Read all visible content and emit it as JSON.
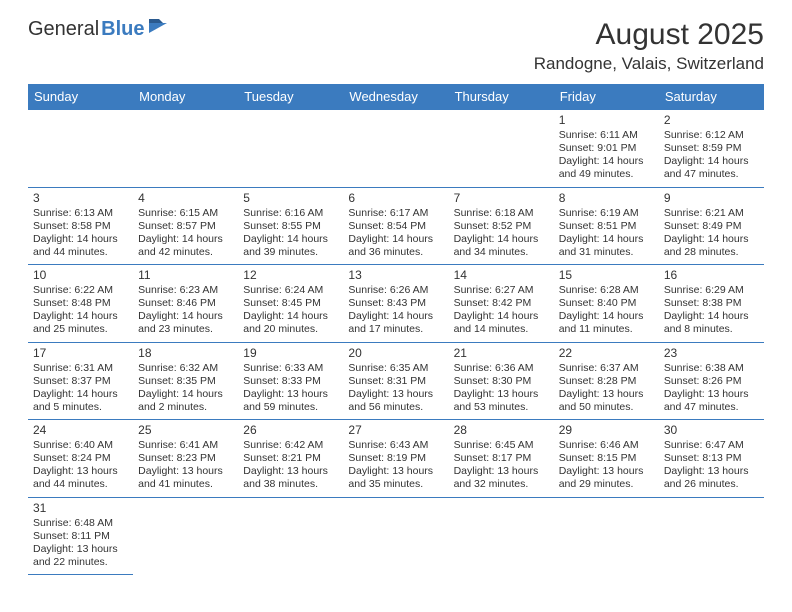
{
  "logo": {
    "text1": "General",
    "text2": "Blue"
  },
  "title": "August 2025",
  "location": "Randogne, Valais, Switzerland",
  "colors": {
    "accent": "#3b7bbf",
    "text": "#333333",
    "background": "#ffffff"
  },
  "weekdays": [
    "Sunday",
    "Monday",
    "Tuesday",
    "Wednesday",
    "Thursday",
    "Friday",
    "Saturday"
  ],
  "grid": [
    [
      null,
      null,
      null,
      null,
      null,
      {
        "n": "1",
        "sunrise": "Sunrise: 6:11 AM",
        "sunset": "Sunset: 9:01 PM",
        "d1": "Daylight: 14 hours",
        "d2": "and 49 minutes."
      },
      {
        "n": "2",
        "sunrise": "Sunrise: 6:12 AM",
        "sunset": "Sunset: 8:59 PM",
        "d1": "Daylight: 14 hours",
        "d2": "and 47 minutes."
      }
    ],
    [
      {
        "n": "3",
        "sunrise": "Sunrise: 6:13 AM",
        "sunset": "Sunset: 8:58 PM",
        "d1": "Daylight: 14 hours",
        "d2": "and 44 minutes."
      },
      {
        "n": "4",
        "sunrise": "Sunrise: 6:15 AM",
        "sunset": "Sunset: 8:57 PM",
        "d1": "Daylight: 14 hours",
        "d2": "and 42 minutes."
      },
      {
        "n": "5",
        "sunrise": "Sunrise: 6:16 AM",
        "sunset": "Sunset: 8:55 PM",
        "d1": "Daylight: 14 hours",
        "d2": "and 39 minutes."
      },
      {
        "n": "6",
        "sunrise": "Sunrise: 6:17 AM",
        "sunset": "Sunset: 8:54 PM",
        "d1": "Daylight: 14 hours",
        "d2": "and 36 minutes."
      },
      {
        "n": "7",
        "sunrise": "Sunrise: 6:18 AM",
        "sunset": "Sunset: 8:52 PM",
        "d1": "Daylight: 14 hours",
        "d2": "and 34 minutes."
      },
      {
        "n": "8",
        "sunrise": "Sunrise: 6:19 AM",
        "sunset": "Sunset: 8:51 PM",
        "d1": "Daylight: 14 hours",
        "d2": "and 31 minutes."
      },
      {
        "n": "9",
        "sunrise": "Sunrise: 6:21 AM",
        "sunset": "Sunset: 8:49 PM",
        "d1": "Daylight: 14 hours",
        "d2": "and 28 minutes."
      }
    ],
    [
      {
        "n": "10",
        "sunrise": "Sunrise: 6:22 AM",
        "sunset": "Sunset: 8:48 PM",
        "d1": "Daylight: 14 hours",
        "d2": "and 25 minutes."
      },
      {
        "n": "11",
        "sunrise": "Sunrise: 6:23 AM",
        "sunset": "Sunset: 8:46 PM",
        "d1": "Daylight: 14 hours",
        "d2": "and 23 minutes."
      },
      {
        "n": "12",
        "sunrise": "Sunrise: 6:24 AM",
        "sunset": "Sunset: 8:45 PM",
        "d1": "Daylight: 14 hours",
        "d2": "and 20 minutes."
      },
      {
        "n": "13",
        "sunrise": "Sunrise: 6:26 AM",
        "sunset": "Sunset: 8:43 PM",
        "d1": "Daylight: 14 hours",
        "d2": "and 17 minutes."
      },
      {
        "n": "14",
        "sunrise": "Sunrise: 6:27 AM",
        "sunset": "Sunset: 8:42 PM",
        "d1": "Daylight: 14 hours",
        "d2": "and 14 minutes."
      },
      {
        "n": "15",
        "sunrise": "Sunrise: 6:28 AM",
        "sunset": "Sunset: 8:40 PM",
        "d1": "Daylight: 14 hours",
        "d2": "and 11 minutes."
      },
      {
        "n": "16",
        "sunrise": "Sunrise: 6:29 AM",
        "sunset": "Sunset: 8:38 PM",
        "d1": "Daylight: 14 hours",
        "d2": "and 8 minutes."
      }
    ],
    [
      {
        "n": "17",
        "sunrise": "Sunrise: 6:31 AM",
        "sunset": "Sunset: 8:37 PM",
        "d1": "Daylight: 14 hours",
        "d2": "and 5 minutes."
      },
      {
        "n": "18",
        "sunrise": "Sunrise: 6:32 AM",
        "sunset": "Sunset: 8:35 PM",
        "d1": "Daylight: 14 hours",
        "d2": "and 2 minutes."
      },
      {
        "n": "19",
        "sunrise": "Sunrise: 6:33 AM",
        "sunset": "Sunset: 8:33 PM",
        "d1": "Daylight: 13 hours",
        "d2": "and 59 minutes."
      },
      {
        "n": "20",
        "sunrise": "Sunrise: 6:35 AM",
        "sunset": "Sunset: 8:31 PM",
        "d1": "Daylight: 13 hours",
        "d2": "and 56 minutes."
      },
      {
        "n": "21",
        "sunrise": "Sunrise: 6:36 AM",
        "sunset": "Sunset: 8:30 PM",
        "d1": "Daylight: 13 hours",
        "d2": "and 53 minutes."
      },
      {
        "n": "22",
        "sunrise": "Sunrise: 6:37 AM",
        "sunset": "Sunset: 8:28 PM",
        "d1": "Daylight: 13 hours",
        "d2": "and 50 minutes."
      },
      {
        "n": "23",
        "sunrise": "Sunrise: 6:38 AM",
        "sunset": "Sunset: 8:26 PM",
        "d1": "Daylight: 13 hours",
        "d2": "and 47 minutes."
      }
    ],
    [
      {
        "n": "24",
        "sunrise": "Sunrise: 6:40 AM",
        "sunset": "Sunset: 8:24 PM",
        "d1": "Daylight: 13 hours",
        "d2": "and 44 minutes."
      },
      {
        "n": "25",
        "sunrise": "Sunrise: 6:41 AM",
        "sunset": "Sunset: 8:23 PM",
        "d1": "Daylight: 13 hours",
        "d2": "and 41 minutes."
      },
      {
        "n": "26",
        "sunrise": "Sunrise: 6:42 AM",
        "sunset": "Sunset: 8:21 PM",
        "d1": "Daylight: 13 hours",
        "d2": "and 38 minutes."
      },
      {
        "n": "27",
        "sunrise": "Sunrise: 6:43 AM",
        "sunset": "Sunset: 8:19 PM",
        "d1": "Daylight: 13 hours",
        "d2": "and 35 minutes."
      },
      {
        "n": "28",
        "sunrise": "Sunrise: 6:45 AM",
        "sunset": "Sunset: 8:17 PM",
        "d1": "Daylight: 13 hours",
        "d2": "and 32 minutes."
      },
      {
        "n": "29",
        "sunrise": "Sunrise: 6:46 AM",
        "sunset": "Sunset: 8:15 PM",
        "d1": "Daylight: 13 hours",
        "d2": "and 29 minutes."
      },
      {
        "n": "30",
        "sunrise": "Sunrise: 6:47 AM",
        "sunset": "Sunset: 8:13 PM",
        "d1": "Daylight: 13 hours",
        "d2": "and 26 minutes."
      }
    ],
    [
      {
        "n": "31",
        "sunrise": "Sunrise: 6:48 AM",
        "sunset": "Sunset: 8:11 PM",
        "d1": "Daylight: 13 hours",
        "d2": "and 22 minutes."
      },
      null,
      null,
      null,
      null,
      null,
      null
    ]
  ]
}
